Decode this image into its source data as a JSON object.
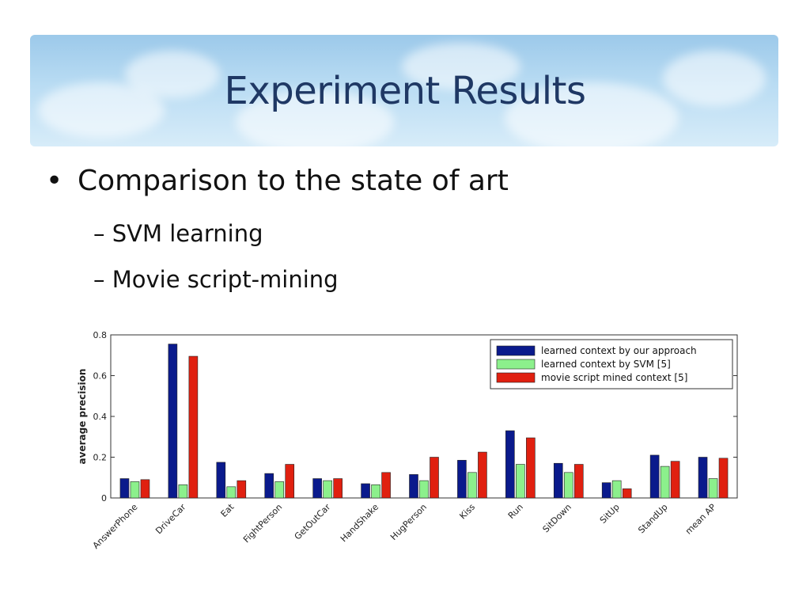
{
  "slide": {
    "title": "Experiment Results",
    "bullet": "Comparison to the state of art",
    "subbullets": [
      "– SVM learning",
      "– Movie script-mining"
    ]
  },
  "chart_data": {
    "type": "bar",
    "ylabel": "average precision",
    "ylim": [
      0,
      0.8
    ],
    "yticks": [
      "0",
      "0.2",
      "0.4",
      "0.6",
      "0.8"
    ],
    "ytick_values": [
      0,
      0.2,
      0.4,
      0.6,
      0.8
    ],
    "categories": [
      "AnswerPhone",
      "DriveCar",
      "Eat",
      "FightPerson",
      "GetOutCar",
      "HandShake",
      "HugPerson",
      "Kiss",
      "Run",
      "SitDown",
      "SitUp",
      "StandUp",
      "mean AP"
    ],
    "series": [
      {
        "name": "learned context by our approach",
        "color": "#0a1a8c",
        "values": [
          0.095,
          0.755,
          0.175,
          0.12,
          0.095,
          0.07,
          0.115,
          0.185,
          0.33,
          0.17,
          0.075,
          0.21,
          0.2
        ]
      },
      {
        "name": "learned context by SVM [5]",
        "color": "#8cf08c",
        "values": [
          0.08,
          0.065,
          0.055,
          0.08,
          0.085,
          0.065,
          0.085,
          0.125,
          0.165,
          0.125,
          0.085,
          0.155,
          0.095
        ]
      },
      {
        "name": "movie script mined context [5]",
        "color": "#e02010",
        "values": [
          0.09,
          0.695,
          0.085,
          0.165,
          0.095,
          0.125,
          0.2,
          0.225,
          0.295,
          0.165,
          0.045,
          0.18,
          0.195
        ]
      }
    ],
    "legend_position": "top-right",
    "grid": false
  }
}
